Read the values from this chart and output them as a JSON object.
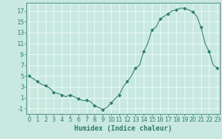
{
  "title": "",
  "xlabel": "Humidex (Indice chaleur)",
  "ylabel": "",
  "x_values": [
    0,
    0.5,
    1,
    1.5,
    2,
    2.5,
    3,
    3.5,
    4,
    4.5,
    5,
    5.5,
    6,
    6.5,
    7,
    7.5,
    8,
    8.5,
    9,
    9.5,
    10,
    10.5,
    11,
    11.5,
    12,
    12.5,
    13,
    13.5,
    14,
    14.5,
    15,
    15.5,
    16,
    16.5,
    17,
    17.5,
    18,
    18.5,
    19,
    19.5,
    20,
    20.5,
    21,
    21.5,
    22,
    22.5,
    23
  ],
  "y_values": [
    5.0,
    4.5,
    4.0,
    3.5,
    3.2,
    2.8,
    2.0,
    1.8,
    1.5,
    1.2,
    1.5,
    1.2,
    0.8,
    0.5,
    0.5,
    0.3,
    -0.5,
    -0.8,
    -1.2,
    -0.8,
    0.0,
    0.8,
    1.5,
    3.0,
    4.0,
    5.0,
    6.5,
    7.0,
    9.5,
    11.0,
    13.5,
    14.0,
    15.5,
    16.0,
    16.5,
    17.0,
    17.2,
    17.5,
    17.5,
    17.2,
    16.8,
    16.0,
    14.0,
    11.0,
    9.5,
    7.0,
    6.5
  ],
  "marker_x": [
    0,
    1,
    2,
    3,
    4,
    5,
    6,
    7,
    8,
    9,
    10,
    11,
    12,
    13,
    14,
    15,
    16,
    17,
    18,
    19,
    20,
    21,
    22,
    23
  ],
  "marker_y": [
    5.0,
    4.0,
    3.2,
    2.0,
    1.5,
    1.5,
    0.8,
    0.5,
    -0.5,
    -1.2,
    0.0,
    1.5,
    4.0,
    6.5,
    9.5,
    13.5,
    15.5,
    16.5,
    17.2,
    17.5,
    16.8,
    14.0,
    9.5,
    6.5
  ],
  "line_color": "#2d7d6a",
  "marker_color": "#2d7d6a",
  "bg_color": "#c8e8e0",
  "grid_color": "#f0fffa",
  "axis_color": "#2d7d6a",
  "xlim": [
    -0.3,
    23.3
  ],
  "ylim": [
    -2.0,
    18.5
  ],
  "yticks": [
    -1,
    1,
    3,
    5,
    7,
    9,
    11,
    13,
    15,
    17
  ],
  "xticks": [
    0,
    1,
    2,
    3,
    4,
    5,
    6,
    7,
    8,
    9,
    10,
    11,
    12,
    13,
    14,
    15,
    16,
    17,
    18,
    19,
    20,
    21,
    22,
    23
  ],
  "xlabel_fontsize": 7,
  "tick_fontsize": 6
}
